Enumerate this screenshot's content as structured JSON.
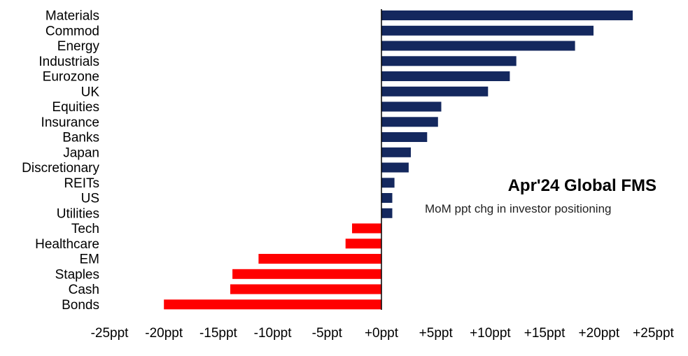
{
  "chart_data": {
    "type": "bar",
    "orientation": "horizontal",
    "title": "Apr'24 Global FMS",
    "subtitle": "MoM ppt chg in investor positioning",
    "categories": [
      "Materials",
      "Commod",
      "Energy",
      "Industrials",
      "Eurozone",
      "UK",
      "Equities",
      "Insurance",
      "Banks",
      "Japan",
      "Discretionary",
      "REITs",
      "US",
      "Utilities",
      "Tech",
      "Healthcare",
      "EM",
      "Staples",
      "Cash",
      "Bonds"
    ],
    "values": [
      23.1,
      19.5,
      17.8,
      12.4,
      11.8,
      9.8,
      5.5,
      5.2,
      4.2,
      2.7,
      2.5,
      1.2,
      1.0,
      1.0,
      -2.7,
      -3.3,
      -11.3,
      -13.7,
      -13.9,
      -20.0
    ],
    "xlim": [
      -25,
      25
    ],
    "xticks": [
      "-25ppt",
      "-20ppt",
      "-15ppt",
      "-10ppt",
      "-5ppt",
      "+0ppt",
      "+5ppt",
      "+10ppt",
      "+15ppt",
      "+20ppt",
      "+25ppt"
    ],
    "xtick_values": [
      -25,
      -20,
      -15,
      -10,
      -5,
      0,
      5,
      10,
      15,
      20,
      25
    ],
    "xlabel": "",
    "ylabel": "",
    "grid": false,
    "legend": "none",
    "colors": {
      "positive": "#14285e",
      "negative": "#ff0000",
      "axis": "#000000"
    }
  }
}
